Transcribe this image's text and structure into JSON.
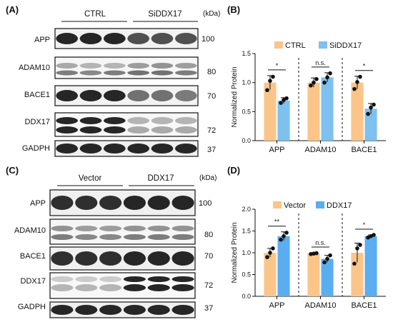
{
  "figure": {
    "panels": [
      {
        "letter": "(A)",
        "groups": [
          "CTRL",
          "SiDDX17"
        ],
        "unit": "(kDa)",
        "rows": [
          {
            "label": "APP",
            "mw": "100"
          },
          {
            "label": "ADAM10",
            "mw": "80"
          },
          {
            "label": "BACE1",
            "mw": "70"
          },
          {
            "label": "DDX17",
            "mw": "72"
          },
          {
            "label": "GADPH",
            "mw": "37"
          }
        ]
      },
      {
        "letter": "(C)",
        "groups": [
          "Vector",
          "DDX17"
        ],
        "unit": "(kDa)",
        "rows": [
          {
            "label": "APP",
            "mw": "100"
          },
          {
            "label": "ADAM10",
            "mw": "80"
          },
          {
            "label": "BACE1",
            "mw": "70"
          },
          {
            "label": "DDX17",
            "mw": "72"
          },
          {
            "label": "GADPH",
            "mw": "37"
          }
        ]
      }
    ]
  },
  "chart_data": [
    {
      "panel": "(B)",
      "type": "bar",
      "categories": [
        "APP",
        "ADAM10",
        "BACE1"
      ],
      "ylabel": "Normalized Protein",
      "ylim": [
        0,
        1.5
      ],
      "yticks": [
        "0.0",
        "0.5",
        "1.0",
        "1.5"
      ],
      "legend_position": "top",
      "series": [
        {
          "name": "CTRL",
          "color": "#FBC58A",
          "values": [
            1.0,
            1.0,
            1.0
          ],
          "err": [
            0.12,
            0.08,
            0.11
          ],
          "points": [
            [
              0.87,
              1.03,
              1.1
            ],
            [
              0.95,
              1.0,
              1.06
            ],
            [
              0.89,
              1.01,
              1.1
            ]
          ]
        },
        {
          "name": "SiDDX17",
          "color": "#7EC0EE",
          "values": [
            0.69,
            1.09,
            0.55
          ],
          "err": [
            0.05,
            0.08,
            0.09
          ],
          "points": [
            [
              0.65,
              0.7,
              0.73
            ],
            [
              1.0,
              1.09,
              1.16
            ],
            [
              0.46,
              0.57,
              0.62
            ]
          ]
        }
      ],
      "significance": [
        "*",
        "n.s.",
        "*"
      ]
    },
    {
      "panel": "(D)",
      "type": "bar",
      "categories": [
        "APP",
        "ADAM10",
        "BACE1"
      ],
      "ylabel": "Normalized Protein",
      "ylim": [
        0,
        2.0
      ],
      "yticks": [
        "0.0",
        "0.5",
        "1.0",
        "1.5",
        "2.0"
      ],
      "legend_position": "top",
      "series": [
        {
          "name": "Vector",
          "color": "#FBC58A",
          "values": [
            1.0,
            0.98,
            1.0
          ],
          "err": [
            0.1,
            0.02,
            0.22
          ],
          "points": [
            [
              0.9,
              1.0,
              1.1
            ],
            [
              0.97,
              0.98,
              0.99
            ],
            [
              0.75,
              1.1,
              1.18
            ]
          ]
        },
        {
          "name": "DDX17",
          "color": "#5AAEF0",
          "values": [
            1.38,
            0.86,
            1.38
          ],
          "err": [
            0.1,
            0.08,
            0.03
          ],
          "points": [
            [
              1.3,
              1.38,
              1.46
            ],
            [
              0.78,
              0.86,
              0.94
            ],
            [
              1.35,
              1.38,
              1.41
            ]
          ]
        }
      ],
      "significance": [
        "**",
        "n.s.",
        "*"
      ]
    }
  ]
}
